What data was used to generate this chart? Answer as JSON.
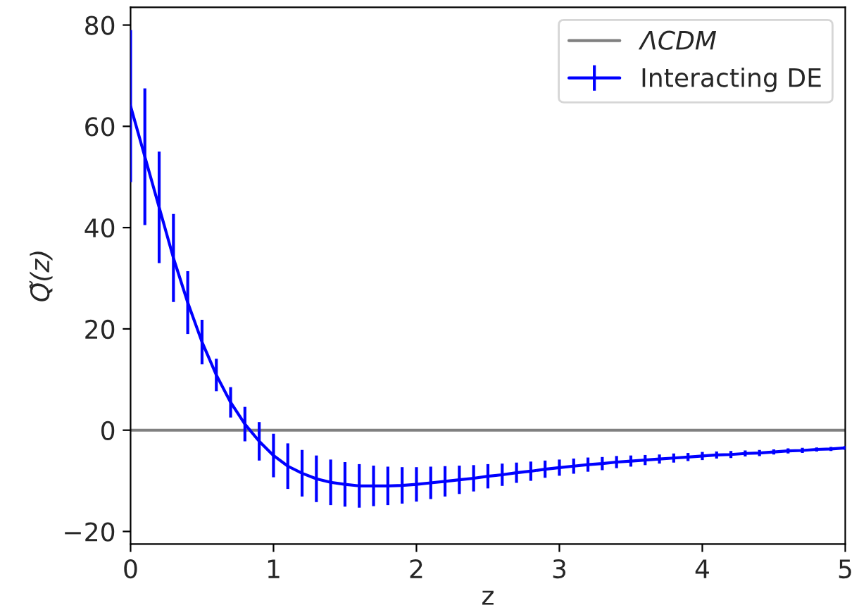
{
  "chart_data": {
    "type": "line",
    "xlabel": "z",
    "ylabel": "Q̃(z)",
    "xlim": [
      0,
      5
    ],
    "ylim": [
      -22.5,
      83.5
    ],
    "xticks": [
      0,
      1,
      2,
      3,
      4,
      5
    ],
    "yticks": [
      -20,
      0,
      20,
      40,
      60,
      80
    ],
    "legend": "top right",
    "grid": false,
    "marker": "none",
    "line_style": "solid",
    "series": [
      {
        "name": "ΛCDM",
        "color": "#808080",
        "x": [
          0,
          5
        ],
        "values": [
          0,
          0
        ]
      },
      {
        "name": "Interacting DE",
        "color": "#0000ff",
        "x": [
          0,
          0.1,
          0.2,
          0.3,
          0.4,
          0.5,
          0.6,
          0.7,
          0.8,
          0.9,
          1.0,
          1.1,
          1.2,
          1.3,
          1.4,
          1.5,
          1.6,
          1.7,
          1.8,
          1.9,
          2.0,
          2.1,
          2.2,
          2.3,
          2.4,
          2.5,
          2.6,
          2.7,
          2.8,
          2.9,
          3.0,
          3.1,
          3.2,
          3.3,
          3.4,
          3.5,
          3.6,
          3.7,
          3.8,
          3.9,
          4.0,
          4.1,
          4.2,
          4.3,
          4.4,
          4.5,
          4.6,
          4.7,
          4.8,
          4.9,
          5.0
        ],
        "values": [
          64,
          54,
          44,
          34,
          25.2,
          17.4,
          10.9,
          5.5,
          1.2,
          -2.2,
          -5,
          -7.1,
          -8.5,
          -9.6,
          -10.3,
          -10.7,
          -11,
          -11,
          -11,
          -10.9,
          -10.7,
          -10.4,
          -10.1,
          -9.8,
          -9.5,
          -9.1,
          -8.8,
          -8.4,
          -8.1,
          -7.7,
          -7.4,
          -7.1,
          -6.8,
          -6.6,
          -6.3,
          -6.1,
          -5.9,
          -5.7,
          -5.5,
          -5.3,
          -5.1,
          -4.9,
          -4.8,
          -4.6,
          -4.5,
          -4.3,
          -4.1,
          -4.0,
          -3.8,
          -3.7,
          -3.5
        ],
        "errors": [
          15,
          13.5,
          11,
          8.7,
          6.2,
          4.4,
          3.2,
          3,
          3.4,
          3.8,
          4.3,
          4.5,
          4.6,
          4.6,
          4.5,
          4.4,
          4.3,
          4,
          3.8,
          3.6,
          3.4,
          3.2,
          3.0,
          2.8,
          2.6,
          2.4,
          2.2,
          2.0,
          1.9,
          1.7,
          1.6,
          1.5,
          1.4,
          1.3,
          1.2,
          1.1,
          1.0,
          0.9,
          0.9,
          0.8,
          0.8,
          0.7,
          0.7,
          0.6,
          0.6,
          0.5,
          0.5,
          0.5,
          0.4,
          0.4,
          0.4
        ]
      }
    ]
  }
}
